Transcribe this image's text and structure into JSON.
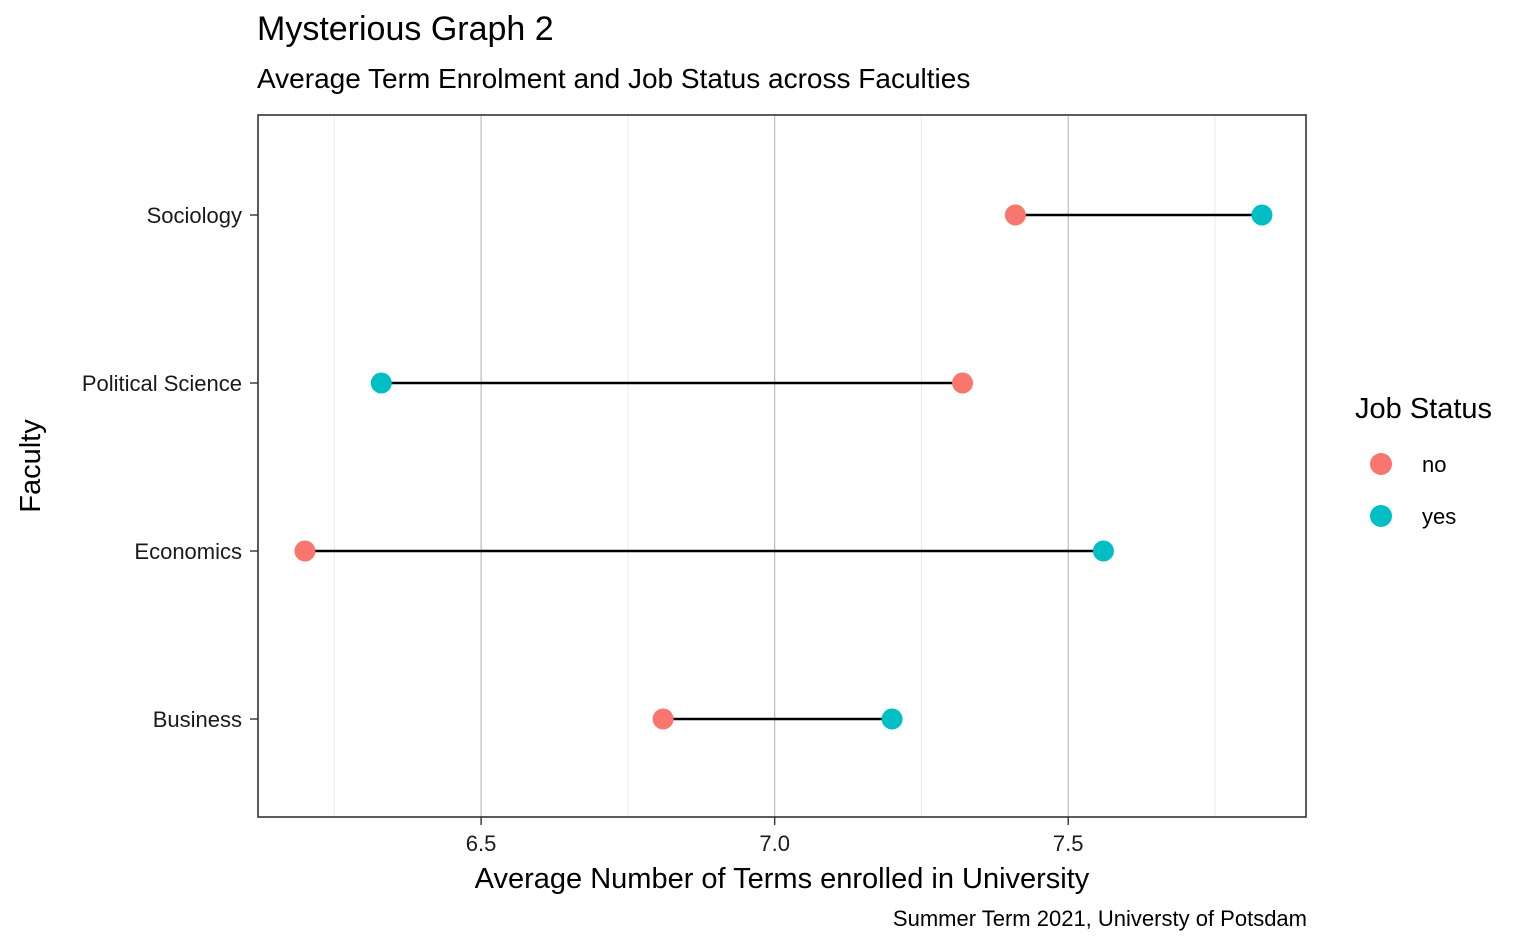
{
  "title": "Mysterious Graph 2",
  "subtitle": "Average Term Enrolment and Job Status across Faculties",
  "caption": "Summer Term 2021, Universty of Potsdam",
  "legend": {
    "title": "Job Status",
    "items": [
      {
        "label": "no",
        "color": "#F8766D"
      },
      {
        "label": "yes",
        "color": "#00BFC4"
      }
    ]
  },
  "chart_data": {
    "type": "dumbbell",
    "title": "Mysterious Graph 2",
    "subtitle": "Average Term Enrolment and Job Status across Faculties",
    "xlabel": "Average Number of Terms enrolled in University",
    "ylabel": "Faculty",
    "xlim": [
      6.12,
      7.905
    ],
    "xticks": [
      6.5,
      7.0,
      7.5
    ],
    "xtick_labels": [
      "6.5",
      "7.0",
      "7.5"
    ],
    "x_minor_gridlines": [
      6.25,
      6.75,
      7.25,
      7.75
    ],
    "categories": [
      "Sociology",
      "Political Science",
      "Economics",
      "Business"
    ],
    "series": [
      {
        "name": "no",
        "color": "#F8766D",
        "values": [
          7.41,
          7.32,
          6.2,
          6.81
        ]
      },
      {
        "name": "yes",
        "color": "#00BFC4",
        "values": [
          7.83,
          6.33,
          7.56,
          7.2
        ]
      }
    ],
    "grid": "vertical",
    "legend_position": "right"
  }
}
